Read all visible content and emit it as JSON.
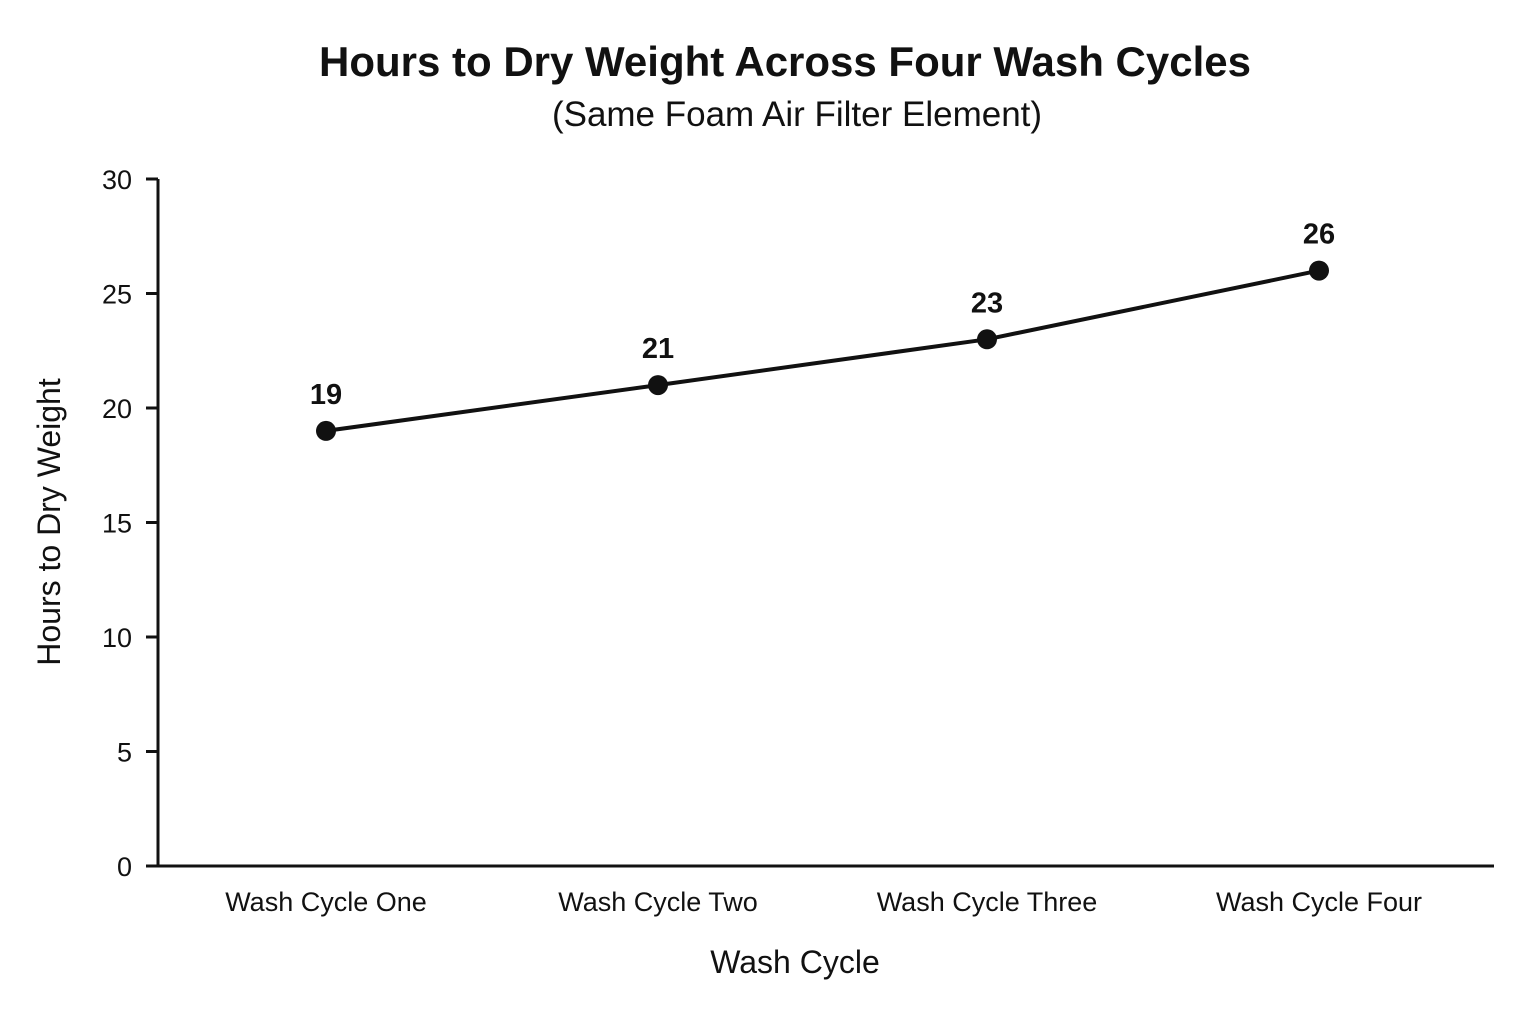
{
  "chart_data": {
    "type": "line",
    "title": "Hours to Dry Weight Across Four Wash Cycles",
    "subtitle": "(Same Foam Air Filter Element)",
    "xlabel": "Wash Cycle",
    "ylabel": "Hours to Dry Weight",
    "categories": [
      "Wash Cycle One",
      "Wash Cycle Two",
      "Wash Cycle Three",
      "Wash Cycle Four"
    ],
    "series": [
      {
        "values": [
          19,
          21,
          23,
          26
        ],
        "data_labels": [
          "19",
          "21",
          "23",
          "26"
        ]
      }
    ],
    "ylim": [
      0,
      30
    ],
    "yticks": [
      0,
      5,
      10,
      15,
      20,
      25,
      30
    ],
    "ytick_labels": [
      "0",
      "5",
      "10",
      "15",
      "20",
      "25",
      "30"
    ],
    "grid": false,
    "legend": "none",
    "line_color": "#111111",
    "marker": "circle"
  }
}
